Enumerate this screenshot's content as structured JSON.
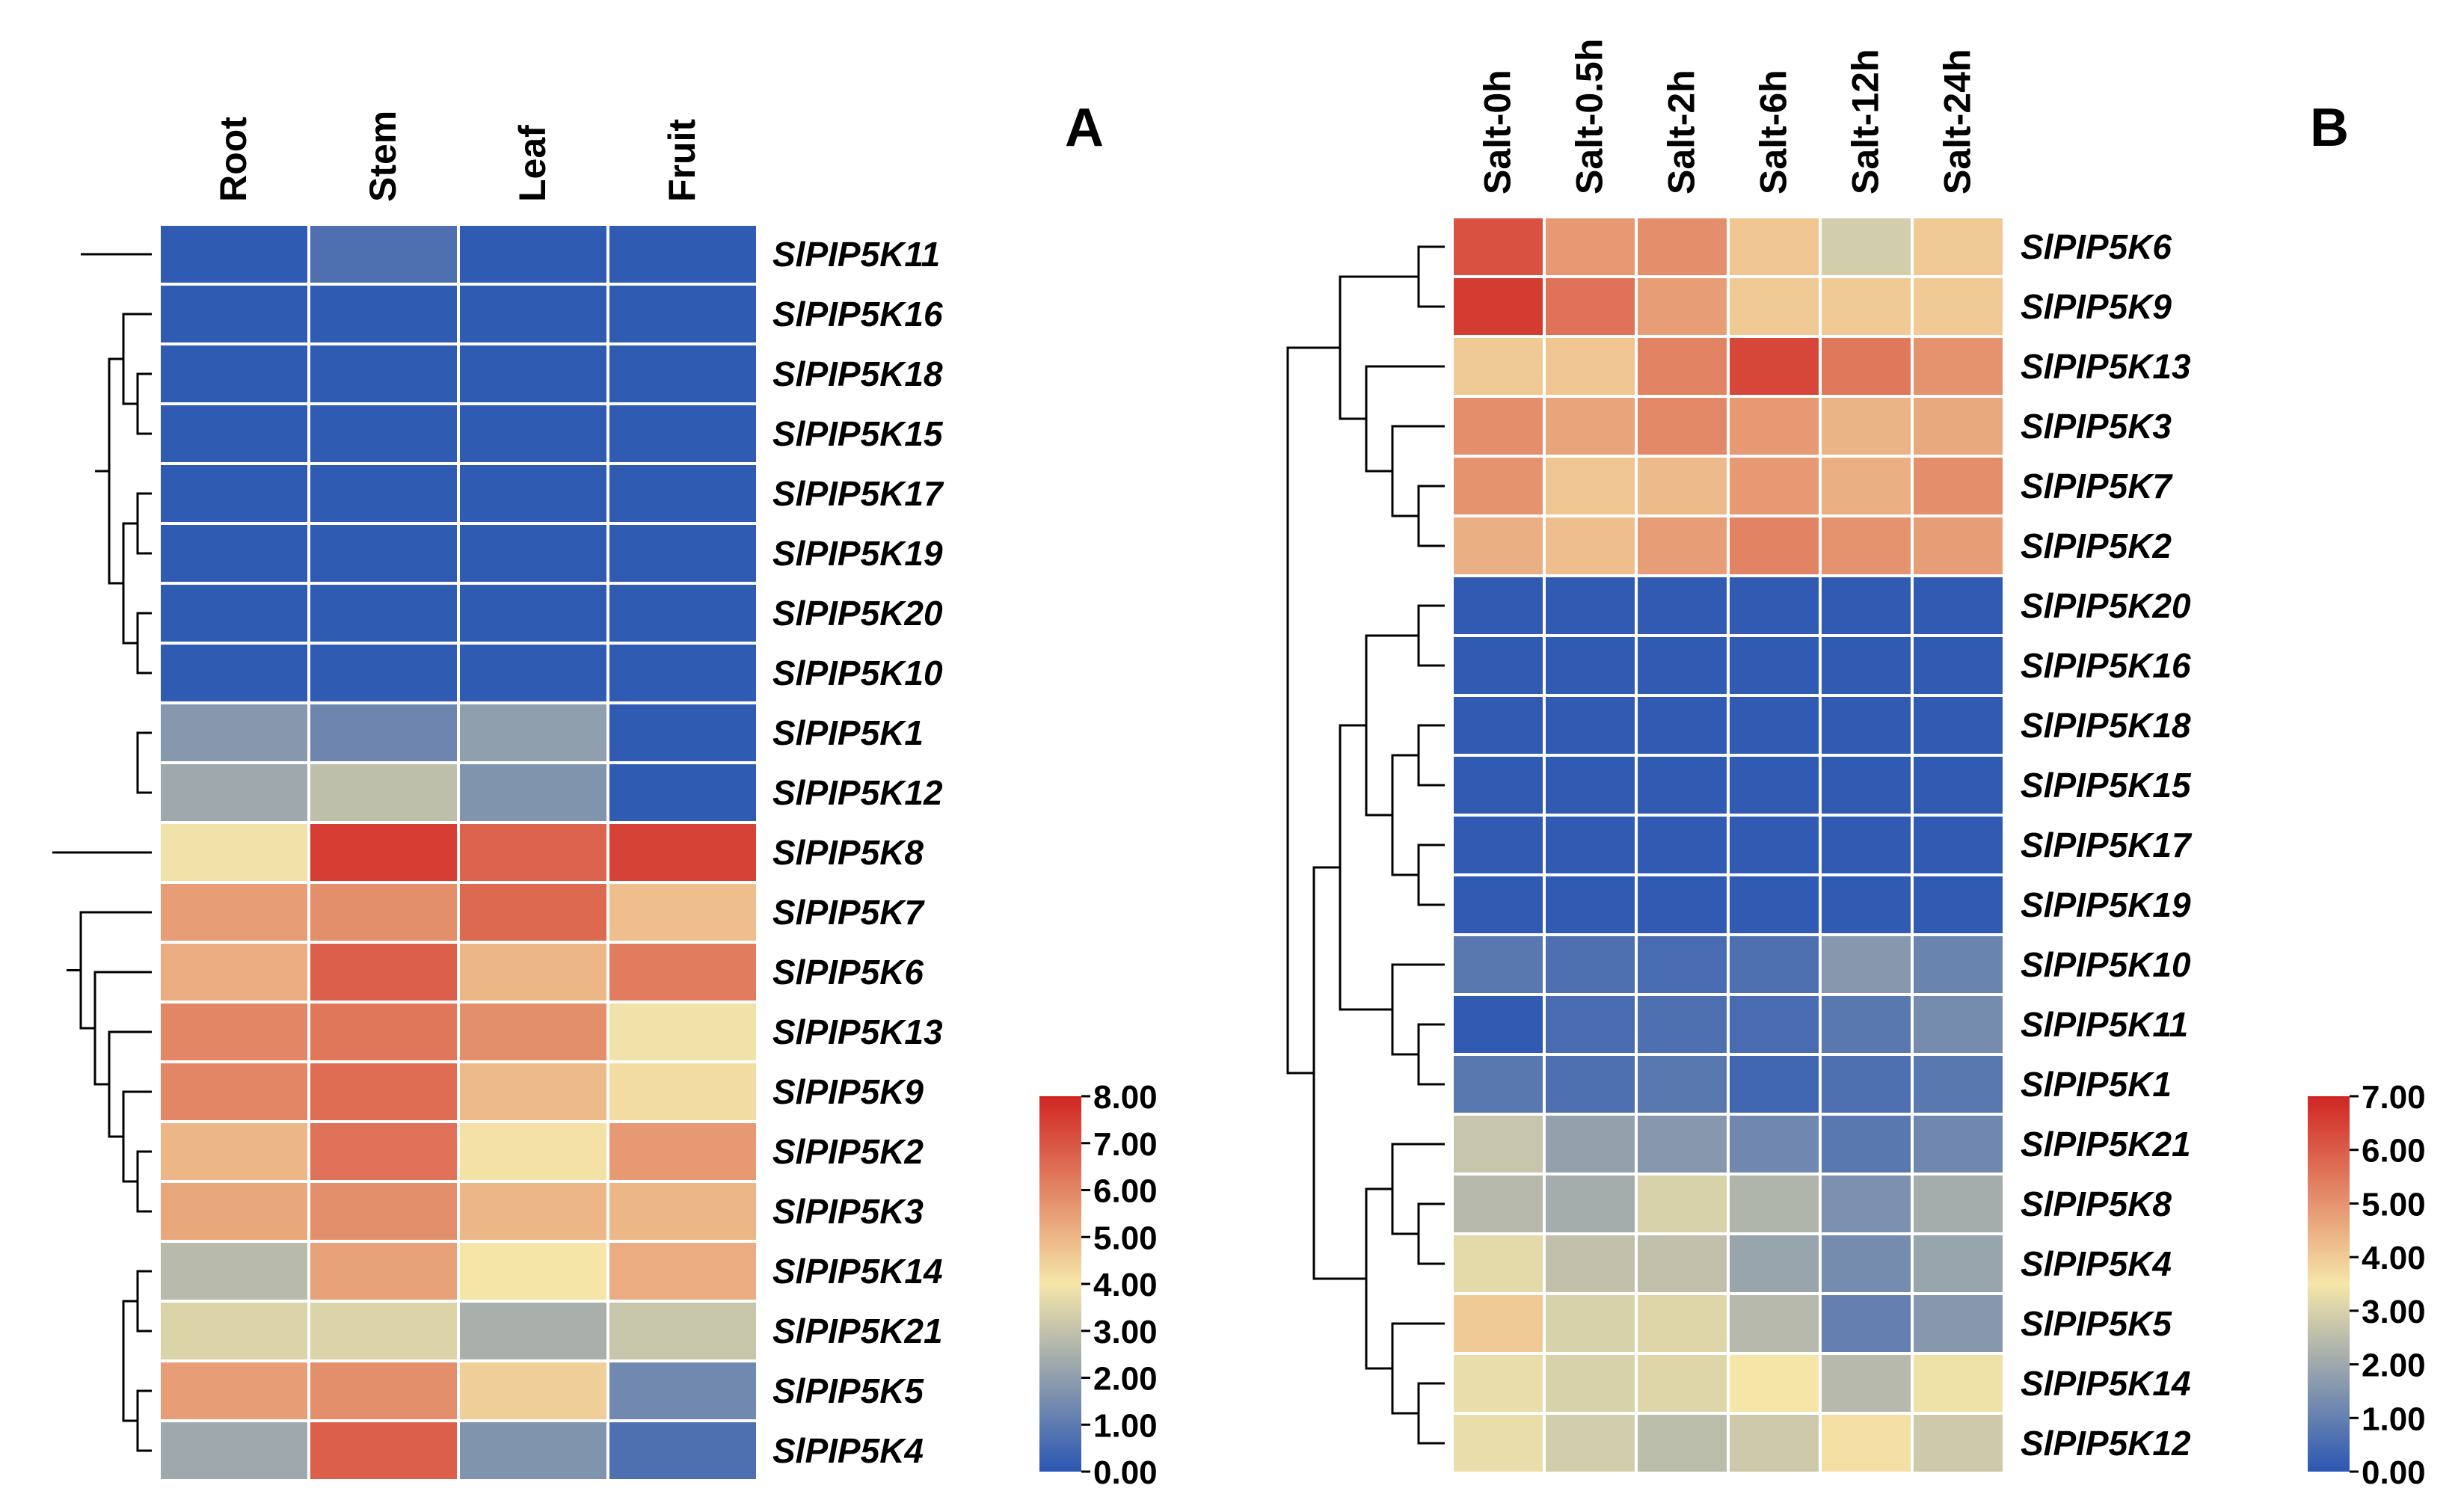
{
  "chart_data": [
    {
      "type": "heatmap",
      "panel_label": "A",
      "columns": [
        "Root",
        "Stem",
        "Leaf",
        "Fruit"
      ],
      "rows": [
        "SlPIP5K11",
        "SlPIP5K16",
        "SlPIP5K18",
        "SlPIP5K15",
        "SlPIP5K17",
        "SlPIP5K19",
        "SlPIP5K20",
        "SlPIP5K10",
        "SlPIP5K1",
        "SlPIP5K12",
        "SlPIP5K8",
        "SlPIP5K7",
        "SlPIP5K6",
        "SlPIP5K13",
        "SlPIP5K9",
        "SlPIP5K2",
        "SlPIP5K3",
        "SlPIP5K14",
        "SlPIP5K21",
        "SlPIP5K5",
        "SlPIP5K4"
      ],
      "values": [
        [
          0.1,
          0.7,
          0.1,
          0.1
        ],
        [
          0.1,
          0.1,
          0.1,
          0.1
        ],
        [
          0.1,
          0.1,
          0.1,
          0.1
        ],
        [
          0.1,
          0.1,
          0.1,
          0.1
        ],
        [
          0.1,
          0.1,
          0.1,
          0.1
        ],
        [
          0.1,
          0.1,
          0.1,
          0.1
        ],
        [
          0.1,
          0.1,
          0.1,
          0.1
        ],
        [
          0.1,
          0.1,
          0.1,
          0.1
        ],
        [
          1.8,
          1.3,
          2.0,
          0.1
        ],
        [
          2.3,
          2.9,
          1.7,
          0.1
        ],
        [
          3.9,
          7.5,
          6.7,
          7.4
        ],
        [
          5.5,
          5.8,
          6.6,
          4.8
        ],
        [
          5.2,
          6.8,
          5.0,
          6.2
        ],
        [
          6.0,
          6.3,
          5.8,
          3.9
        ],
        [
          6.0,
          6.5,
          4.9,
          4.2
        ],
        [
          5.0,
          6.4,
          4.1,
          5.6
        ],
        [
          5.3,
          5.8,
          5.0,
          5.0
        ],
        [
          2.8,
          5.4,
          4.0,
          5.2
        ],
        [
          3.5,
          3.5,
          2.5,
          3.1
        ],
        [
          5.5,
          5.8,
          4.5,
          1.4
        ],
        [
          2.3,
          6.8,
          1.7,
          0.7
        ]
      ],
      "colorbar": {
        "min": 0.0,
        "max": 8.0,
        "ticks": [
          "0.00",
          "1.00",
          "2.00",
          "3.00",
          "4.00",
          "5.00",
          "6.00",
          "7.00",
          "8.00"
        ]
      },
      "colormap": {
        "low": "#2b57b3",
        "mid": "#f5e6a8",
        "high": "#d02522"
      }
    },
    {
      "type": "heatmap",
      "panel_label": "B",
      "columns": [
        "Salt-0h",
        "Salt-0.5h",
        "Salt-2h",
        "Salt-6h",
        "Salt-12h",
        "Salt-24h"
      ],
      "rows": [
        "SlPIP5K6",
        "SlPIP5K9",
        "SlPIP5K13",
        "SlPIP5K3",
        "SlPIP5K7",
        "SlPIP5K2",
        "SlPIP5K20",
        "SlPIP5K16",
        "SlPIP5K18",
        "SlPIP5K15",
        "SlPIP5K17",
        "SlPIP5K19",
        "SlPIP5K10",
        "SlPIP5K11",
        "SlPIP5K1",
        "SlPIP5K21",
        "SlPIP5K8",
        "SlPIP5K4",
        "SlPIP5K5",
        "SlPIP5K14",
        "SlPIP5K12"
      ],
      "values": [
        [
          6.2,
          4.9,
          5.1,
          4.1,
          2.9,
          4.0
        ],
        [
          6.6,
          5.6,
          4.8,
          4.0,
          4.0,
          4.0
        ],
        [
          4.0,
          4.1,
          5.3,
          6.4,
          5.5,
          5.0
        ],
        [
          5.1,
          4.7,
          5.2,
          4.9,
          4.4,
          4.6
        ],
        [
          5.0,
          4.1,
          4.3,
          4.9,
          4.5,
          5.1
        ],
        [
          4.5,
          4.2,
          4.8,
          5.3,
          5.0,
          4.8
        ],
        [
          0.1,
          0.1,
          0.1,
          0.1,
          0.1,
          0.1
        ],
        [
          0.1,
          0.1,
          0.1,
          0.1,
          0.1,
          0.1
        ],
        [
          0.1,
          0.1,
          0.1,
          0.1,
          0.1,
          0.1
        ],
        [
          0.1,
          0.1,
          0.1,
          0.1,
          0.1,
          0.1
        ],
        [
          0.1,
          0.1,
          0.1,
          0.1,
          0.1,
          0.1
        ],
        [
          0.1,
          0.1,
          0.1,
          0.1,
          0.1,
          0.1
        ],
        [
          0.8,
          0.6,
          0.5,
          0.6,
          1.6,
          1.1
        ],
        [
          0.1,
          0.5,
          0.6,
          0.5,
          0.8,
          1.3
        ],
        [
          0.8,
          0.6,
          0.8,
          0.4,
          0.6,
          0.8
        ],
        [
          2.7,
          1.8,
          1.6,
          1.2,
          0.8,
          1.2
        ],
        [
          2.4,
          2.1,
          3.0,
          2.3,
          1.4,
          2.1
        ],
        [
          3.2,
          2.6,
          2.6,
          1.9,
          1.3,
          1.9
        ],
        [
          4.0,
          3.0,
          3.1,
          2.4,
          1.0,
          1.6
        ],
        [
          3.3,
          3.0,
          3.1,
          3.5,
          2.4,
          3.4
        ],
        [
          3.3,
          2.9,
          2.5,
          2.8,
          3.6,
          2.8
        ]
      ],
      "colorbar": {
        "min": 0.0,
        "max": 7.0,
        "ticks": [
          "0.00",
          "1.00",
          "2.00",
          "3.00",
          "4.00",
          "5.00",
          "6.00",
          "7.00"
        ]
      },
      "colormap": {
        "low": "#2b57b3",
        "mid": "#f5e6a8",
        "high": "#d02522"
      }
    }
  ]
}
